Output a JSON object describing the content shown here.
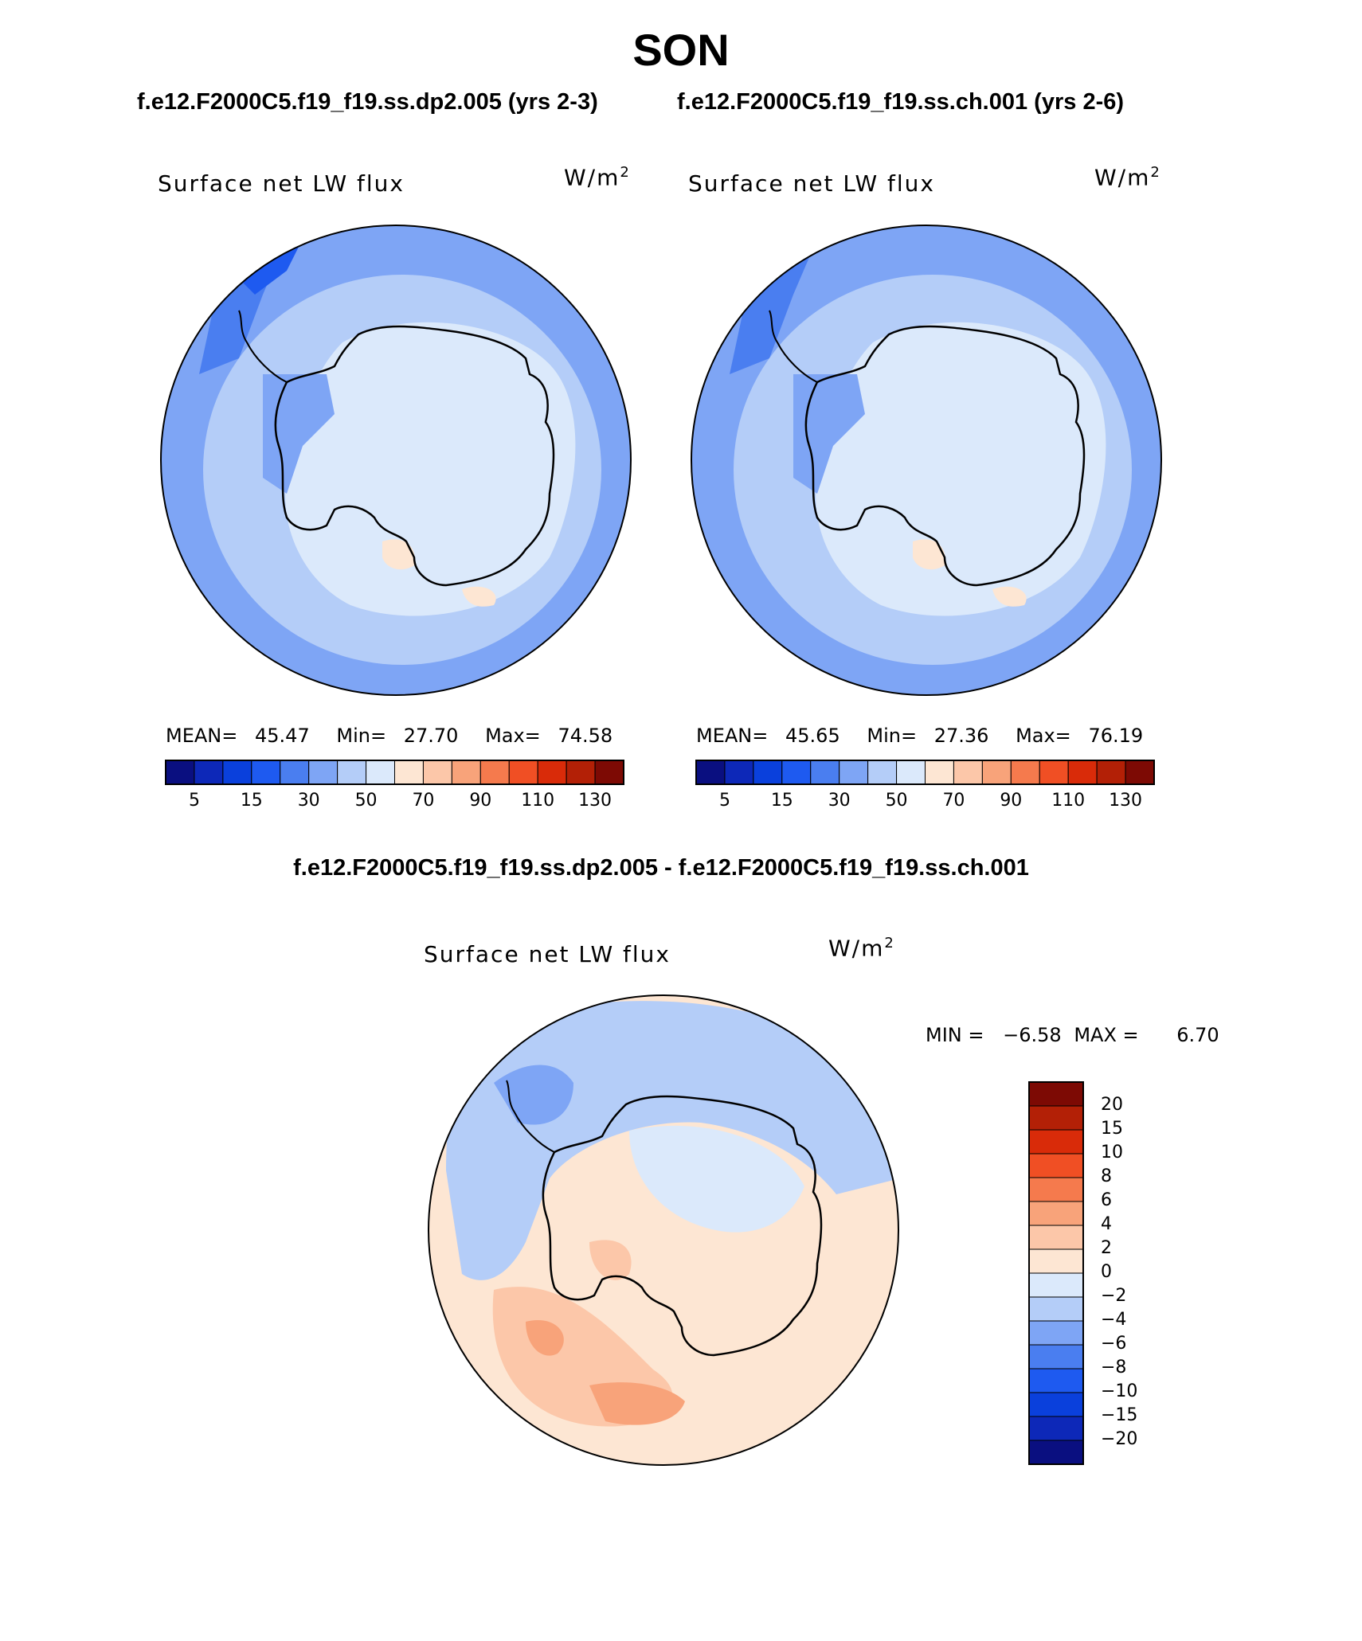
{
  "figure": {
    "title": "SON",
    "subtitle_left": "f.e12.F2000C5.f19_f19.ss.dp2.005 (yrs 2-3)",
    "subtitle_right": "f.e12.F2000C5.f19_f19.ss.ch.001 (yrs 2-6)",
    "diff_title": "f.e12.F2000C5.f19_f19.ss.dp2.005 - f.e12.F2000C5.f19_f19.ss.ch.001"
  },
  "panels": [
    {
      "label": "Surface net LW flux",
      "units_base": "W/m",
      "units_exp": "2",
      "mean_label": "MEAN=",
      "mean": "45.47",
      "min_label": "Min=",
      "min": "27.70",
      "max_label": "Max=",
      "max": "74.58"
    },
    {
      "label": "Surface net LW flux",
      "units_base": "W/m",
      "units_exp": "2",
      "mean_label": "MEAN=",
      "mean": "45.65",
      "min_label": "Min=",
      "min": "27.36",
      "max_label": "Max=",
      "max": "76.19"
    },
    {
      "label": "Surface net LW flux",
      "units_base": "W/m",
      "units_exp": "2",
      "min_label": "MIN =",
      "min": "−6.58",
      "max_label": "MAX =",
      "max": "6.70"
    }
  ],
  "colorbar_abs": {
    "colors": [
      "#0a0f80",
      "#0d28b8",
      "#0a40dc",
      "#1e5af0",
      "#4a7ef0",
      "#7ea5f5",
      "#b4cdf8",
      "#dbe9fb",
      "#fde6d3",
      "#fcc7a9",
      "#f8a37a",
      "#f57a4d",
      "#f04f24",
      "#d92b09",
      "#b32006",
      "#7d0a04"
    ],
    "tick_labels": [
      "5",
      "15",
      "30",
      "50",
      "70",
      "90",
      "110",
      "130"
    ]
  },
  "colorbar_diff": {
    "colors": [
      "#7d0a04",
      "#b32006",
      "#d92b09",
      "#f04f24",
      "#f57a4d",
      "#f8a37a",
      "#fcc7a9",
      "#fde6d3",
      "#dbe9fb",
      "#b4cdf8",
      "#7ea5f5",
      "#4a7ef0",
      "#1e5af0",
      "#0a40dc",
      "#0d28b8",
      "#0a0f80"
    ],
    "tick_labels": [
      "20",
      "15",
      "10",
      "8",
      "6",
      "4",
      "2",
      "0",
      "−2",
      "−4",
      "−6",
      "−8",
      "−10",
      "−15",
      "−20"
    ]
  },
  "colors": {
    "ocean_outer": "#7ea5f5",
    "mid": "#b4cdf8",
    "inner": "#dbe9fb",
    "deep": "#4a7ef0",
    "warm": "#fde6d3",
    "warm2": "#fcc7a9",
    "warm3": "#f8a37a"
  }
}
